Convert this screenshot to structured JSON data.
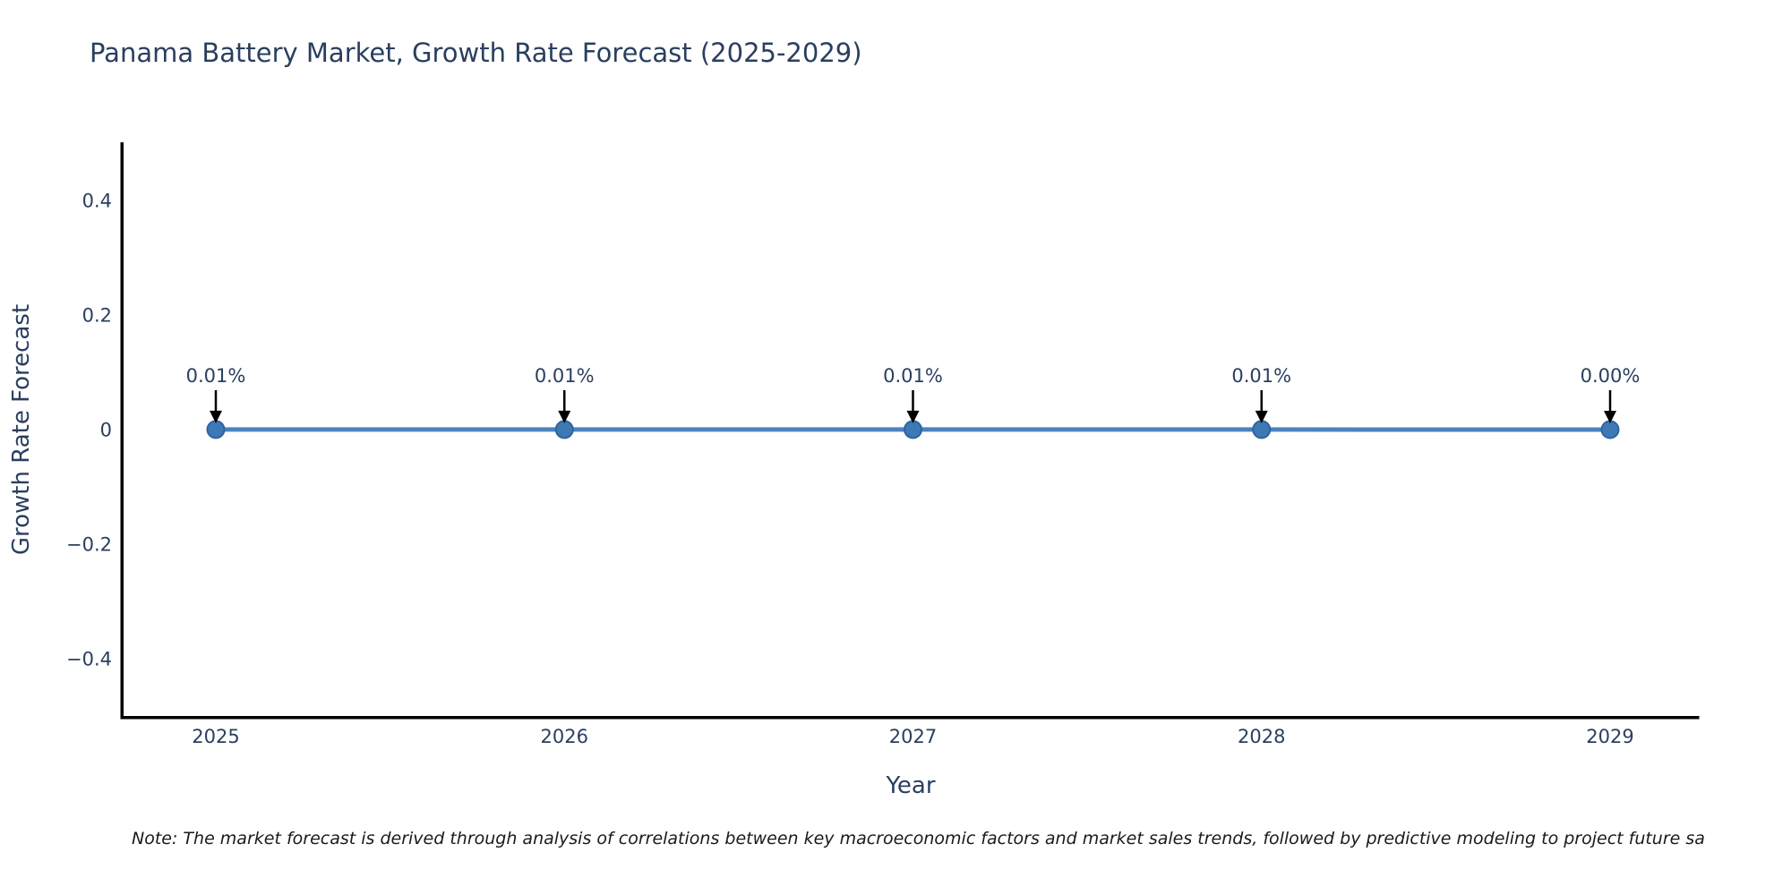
{
  "title": "Panama Battery Market, Growth Rate Forecast (2025-2029)",
  "note": "Note: The market forecast is derived through analysis of correlations between key macroeconomic factors and market sales trends, followed by predictive modeling to project future sa",
  "colors": {
    "title_text": "#2a3f5f",
    "tick_text": "#2a3f5f",
    "line": "#4a84bd",
    "marker_fill": "#3c79b5",
    "marker_edge": "#2f649e",
    "axis_spine": "#000000",
    "arrow": "#000000",
    "note_text": "#1a1a1a",
    "background": "#ffffff"
  },
  "chart_data": {
    "type": "line",
    "title": "Panama Battery Market, Growth Rate Forecast (2025-2029)",
    "xlabel": "Year",
    "ylabel": "Growth Rate Forecast",
    "x": [
      2025,
      2026,
      2027,
      2028,
      2029
    ],
    "values": [
      0.0001,
      0.0001,
      0.0001,
      0.0001,
      0.0
    ],
    "point_labels": [
      "0.01%",
      "0.01%",
      "0.01%",
      "0.01%",
      "0.00%"
    ],
    "x_tick_labels": [
      "2025",
      "2026",
      "2027",
      "2028",
      "2029"
    ],
    "y_tick_labels": [
      "0.4",
      "0.2",
      "0",
      "−0.2",
      "−0.4"
    ],
    "y_tick_values": [
      0.4,
      0.2,
      0,
      -0.2,
      -0.4
    ],
    "ylim": [
      -0.5,
      0.5
    ],
    "grid": false,
    "legend": "none",
    "annotation_style": "down-arrow-to-point"
  }
}
